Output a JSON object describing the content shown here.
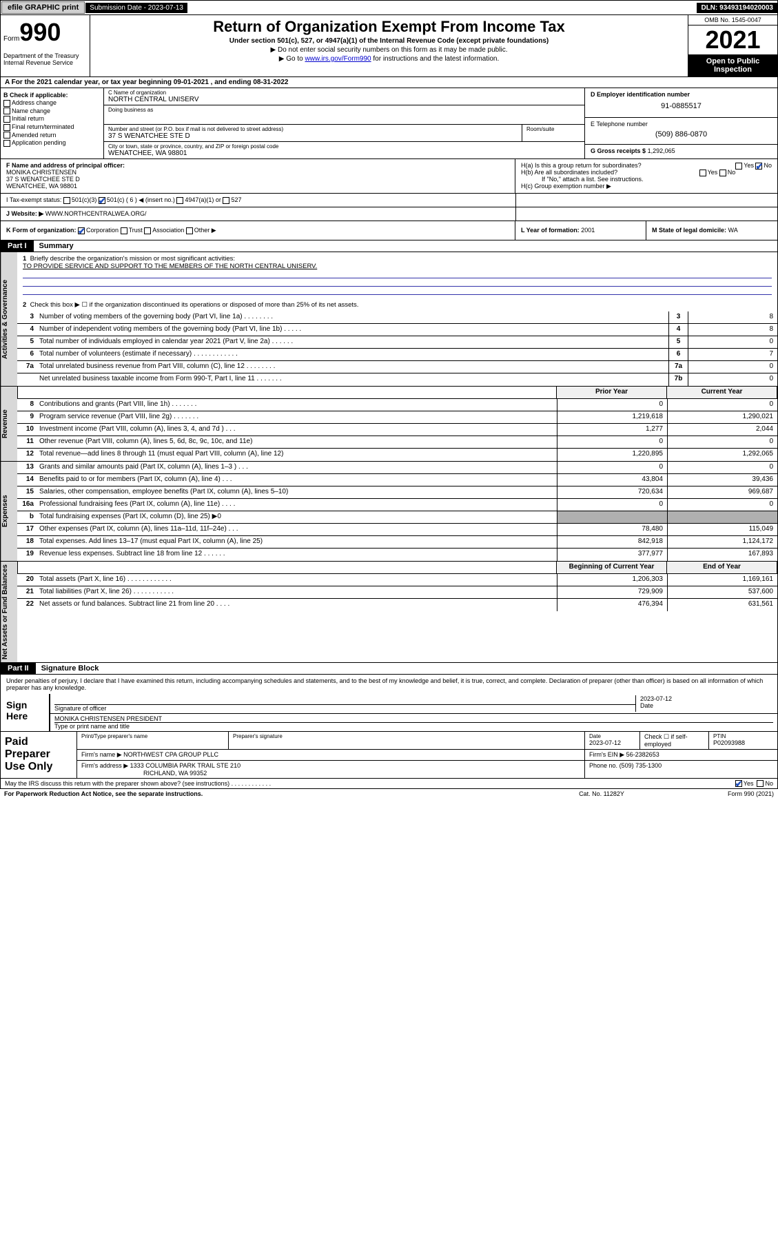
{
  "topbar": {
    "efile": "efile GRAPHIC print",
    "sub_label": "Submission Date - 2023-07-13",
    "dln": "DLN: 93493194020003"
  },
  "header": {
    "form_word": "Form",
    "form_num": "990",
    "dept": "Department of the Treasury\nInternal Revenue Service",
    "title": "Return of Organization Exempt From Income Tax",
    "sub1": "Under section 501(c), 527, or 4947(a)(1) of the Internal Revenue Code (except private foundations)",
    "sub2": "▶ Do not enter social security numbers on this form as it may be made public.",
    "sub3_pre": "▶ Go to ",
    "sub3_link": "www.irs.gov/Form990",
    "sub3_post": " for instructions and the latest information.",
    "omb": "OMB No. 1545-0047",
    "year": "2021",
    "open": "Open to Public Inspection"
  },
  "row_a": "A For the 2021 calendar year, or tax year beginning 09-01-2021   , and ending 08-31-2022",
  "col_b": {
    "label": "B Check if applicable:",
    "items": [
      "Address change",
      "Name change",
      "Initial return",
      "Final return/terminated",
      "Amended return",
      "Application pending"
    ]
  },
  "col_c": {
    "name_cap": "C Name of organization",
    "name": "NORTH CENTRAL UNISERV",
    "dba_cap": "Doing business as",
    "dba": "",
    "street_cap": "Number and street (or P.O. box if mail is not delivered to street address)",
    "street": "37 S WENATCHEE STE D",
    "room_cap": "Room/suite",
    "city_cap": "City or town, state or province, country, and ZIP or foreign postal code",
    "city": "WENATCHEE, WA  98801"
  },
  "col_d": {
    "ein_cap": "D Employer identification number",
    "ein": "91-0885517",
    "phone_cap": "E Telephone number",
    "phone": "(509) 886-0870",
    "gross_cap": "G Gross receipts $",
    "gross": "1,292,065"
  },
  "row_f": {
    "cap": "F Name and address of principal officer:",
    "name": "MONIKA CHRISTENSEN",
    "addr1": "37 S WENATCHEE STE D",
    "addr2": "WENATCHEE, WA  98801"
  },
  "row_h": {
    "ha": "H(a)  Is this a group return for subordinates?",
    "hb": "H(b)  Are all subordinates included?",
    "hb_note": "If \"No,\" attach a list. See instructions.",
    "hc": "H(c)  Group exemption number ▶"
  },
  "row_i": {
    "cap": "I  Tax-exempt status:",
    "c3": "501(c)(3)",
    "c": "501(c) ( 6 ) ◀ (insert no.)",
    "a1": "4947(a)(1) or",
    "s527": "527"
  },
  "row_j": {
    "cap": "J  Website: ▶",
    "val": "WWW.NORTHCENTRALWEA.ORG/"
  },
  "row_k": {
    "cap": "K Form of organization:",
    "opts": [
      "Corporation",
      "Trust",
      "Association",
      "Other ▶"
    ]
  },
  "row_l": {
    "cap": "L Year of formation:",
    "val": "2001"
  },
  "row_m": {
    "cap": "M State of legal domicile:",
    "val": "WA"
  },
  "part1": {
    "hdr": "Part I",
    "title": "Summary"
  },
  "gov": {
    "tab": "Activities & Governance",
    "l1_cap": "Briefly describe the organization's mission or most significant activities:",
    "l1_val": "TO PROVIDE SERVICE AND SUPPORT TO THE MEMBERS OF THE NORTH CENTRAL UNISERV.",
    "l2": "Check this box ▶ ☐  if the organization discontinued its operations or disposed of more than 25% of its net assets.",
    "lines": [
      {
        "n": "3",
        "t": "Number of voting members of the governing body (Part VI, line 1a)   .    .    .    .    .    .    .    .",
        "bn": "3",
        "bv": "8"
      },
      {
        "n": "4",
        "t": "Number of independent voting members of the governing body (Part VI, line 1b)   .    .    .    .    .",
        "bn": "4",
        "bv": "8"
      },
      {
        "n": "5",
        "t": "Total number of individuals employed in calendar year 2021 (Part V, line 2a)   .    .    .    .    .    .",
        "bn": "5",
        "bv": "0"
      },
      {
        "n": "6",
        "t": "Total number of volunteers (estimate if necessary)   .    .    .    .    .    .    .    .    .    .    .    .",
        "bn": "6",
        "bv": "7"
      },
      {
        "n": "7a",
        "t": "Total unrelated business revenue from Part VIII, column (C), line 12   .    .    .    .    .    .    .    .",
        "bn": "7a",
        "bv": "0"
      },
      {
        "n": "",
        "t": "Net unrelated business taxable income from Form 990-T, Part I, line 11   .    .    .    .    .    .    .",
        "bn": "7b",
        "bv": "0"
      }
    ]
  },
  "rev": {
    "tab": "Revenue",
    "hdr_py": "Prior Year",
    "hdr_cy": "Current Year",
    "lines": [
      {
        "n": "8",
        "t": "Contributions and grants (Part VIII, line 1h)   .    .    .    .    .    .    .",
        "py": "0",
        "cy": "0"
      },
      {
        "n": "9",
        "t": "Program service revenue (Part VIII, line 2g)   .    .    .    .    .    .    .",
        "py": "1,219,618",
        "cy": "1,290,021"
      },
      {
        "n": "10",
        "t": "Investment income (Part VIII, column (A), lines 3, 4, and 7d )   .    .    .",
        "py": "1,277",
        "cy": "2,044"
      },
      {
        "n": "11",
        "t": "Other revenue (Part VIII, column (A), lines 5, 6d, 8c, 9c, 10c, and 11e)",
        "py": "0",
        "cy": "0"
      },
      {
        "n": "12",
        "t": "Total revenue—add lines 8 through 11 (must equal Part VIII, column (A), line 12)",
        "py": "1,220,895",
        "cy": "1,292,065"
      }
    ]
  },
  "exp": {
    "tab": "Expenses",
    "lines": [
      {
        "n": "13",
        "t": "Grants and similar amounts paid (Part IX, column (A), lines 1–3 )   .    .    .",
        "py": "0",
        "cy": "0"
      },
      {
        "n": "14",
        "t": "Benefits paid to or for members (Part IX, column (A), line 4)   .    .    .",
        "py": "43,804",
        "cy": "39,436"
      },
      {
        "n": "15",
        "t": "Salaries, other compensation, employee benefits (Part IX, column (A), lines 5–10)",
        "py": "720,634",
        "cy": "969,687"
      },
      {
        "n": "16a",
        "t": "Professional fundraising fees (Part IX, column (A), line 11e)   .    .    .    .",
        "py": "0",
        "cy": "0"
      },
      {
        "n": "b",
        "t": "Total fundraising expenses (Part IX, column (D), line 25) ▶0",
        "py": "",
        "cy": "",
        "grey": true
      },
      {
        "n": "17",
        "t": "Other expenses (Part IX, column (A), lines 11a–11d, 11f–24e)   .    .    .",
        "py": "78,480",
        "cy": "115,049"
      },
      {
        "n": "18",
        "t": "Total expenses. Add lines 13–17 (must equal Part IX, column (A), line 25)",
        "py": "842,918",
        "cy": "1,124,172"
      },
      {
        "n": "19",
        "t": "Revenue less expenses. Subtract line 18 from line 12   .    .    .    .    .    .",
        "py": "377,977",
        "cy": "167,893"
      }
    ]
  },
  "net": {
    "tab": "Net Assets or Fund Balances",
    "hdr_py": "Beginning of Current Year",
    "hdr_cy": "End of Year",
    "lines": [
      {
        "n": "20",
        "t": "Total assets (Part X, line 16)   .    .    .    .    .    .    .    .    .    .    .    .",
        "py": "1,206,303",
        "cy": "1,169,161"
      },
      {
        "n": "21",
        "t": "Total liabilities (Part X, line 26)   .    .    .    .    .    .    .    .    .    .    .",
        "py": "729,909",
        "cy": "537,600"
      },
      {
        "n": "22",
        "t": "Net assets or fund balances. Subtract line 21 from line 20   .    .    .    .",
        "py": "476,394",
        "cy": "631,561"
      }
    ]
  },
  "part2": {
    "hdr": "Part II",
    "title": "Signature Block"
  },
  "sig": {
    "decl": "Under penalties of perjury, I declare that I have examined this return, including accompanying schedules and statements, and to the best of my knowledge and belief, it is true, correct, and complete. Declaration of preparer (other than officer) is based on all information of which preparer has any knowledge.",
    "here": "Sign Here",
    "sig_cap": "Signature of officer",
    "date_cap": "Date",
    "date": "2023-07-12",
    "name": "MONIKA CHRISTENSEN  PRESIDENT",
    "name_cap": "Type or print name and title"
  },
  "paid": {
    "label": "Paid Preparer Use Only",
    "r1": {
      "c1_cap": "Print/Type preparer's name",
      "c1": "",
      "c2_cap": "Preparer's signature",
      "c3_cap": "Date",
      "c3": "2023-07-12",
      "c4": "Check ☐ if self-employed",
      "c5_cap": "PTIN",
      "c5": "P02093988"
    },
    "r2": {
      "cap": "Firm's name    ▶",
      "val": "NORTHWEST CPA GROUP PLLC",
      "ein_cap": "Firm's EIN ▶",
      "ein": "56-2382653"
    },
    "r3": {
      "cap": "Firm's address ▶",
      "val1": "1333 COLUMBIA PARK TRAIL STE 210",
      "val2": "RICHLAND, WA  99352",
      "ph_cap": "Phone no.",
      "ph": "(509) 735-1300"
    }
  },
  "foot": {
    "q": "May the IRS discuss this return with the preparer shown above? (see instructions)   .    .    .    .    .    .    .    .    .    .    .    .",
    "yes": "Yes",
    "no": "No"
  },
  "foot2": {
    "l": "For Paperwork Reduction Act Notice, see the separate instructions.",
    "m": "Cat. No. 11282Y",
    "r": "Form 990 (2021)"
  }
}
